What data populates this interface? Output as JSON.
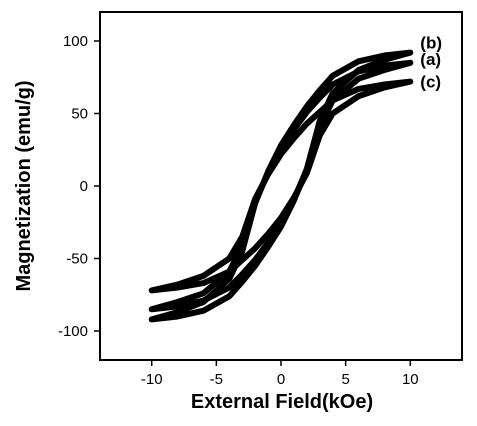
{
  "chart_data": {
    "type": "line",
    "x_label": "External Field(kOe)",
    "y_label": "Magnetization (emu/g)",
    "x": [
      -10,
      -8,
      -6,
      -4,
      -3,
      -2,
      -1,
      0,
      1,
      2,
      3,
      4,
      6,
      8,
      10,
      8,
      6,
      4,
      3,
      2,
      1,
      0,
      -1,
      -2,
      -3,
      -4,
      -6,
      -8,
      -10
    ],
    "series": [
      {
        "name": "(a)",
        "color": "#000000",
        "values": [
          -85,
          -83,
          -79,
          -70,
          -61,
          -51,
          -39,
          -26,
          -9,
          11,
          41,
          59,
          74,
          80,
          85,
          83,
          79,
          70,
          61,
          51,
          39,
          26,
          9,
          -11,
          -41,
          -59,
          -74,
          -80,
          -85
        ]
      },
      {
        "name": "(b)",
        "color": "#000000",
        "values": [
          -92,
          -90,
          -86,
          -76,
          -66,
          -55,
          -42,
          -28,
          -10,
          12,
          45,
          64,
          80,
          87,
          92,
          90,
          86,
          76,
          66,
          55,
          42,
          28,
          10,
          -12,
          -45,
          -64,
          -80,
          -87,
          -92
        ]
      },
      {
        "name": "(c)",
        "color": "#000000",
        "values": [
          -72,
          -70,
          -67,
          -59,
          -51,
          -43,
          -33,
          -22,
          -8,
          9,
          35,
          50,
          62,
          68,
          72,
          70,
          67,
          59,
          51,
          43,
          33,
          22,
          8,
          -9,
          -35,
          -50,
          -62,
          -68,
          -72
        ]
      }
    ],
    "xlim": [
      -14,
      14
    ],
    "ylim": [
      -120,
      120
    ],
    "xticks": [
      -10,
      -5,
      0,
      5,
      10
    ],
    "yticks": [
      -100,
      -50,
      0,
      50,
      100
    ]
  }
}
